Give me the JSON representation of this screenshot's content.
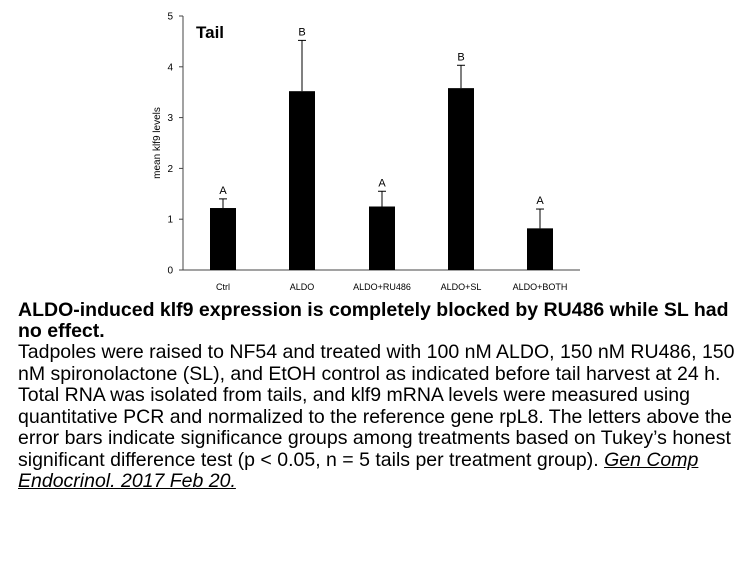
{
  "chart_data": {
    "type": "bar",
    "title": "Tail",
    "xlabel": "",
    "ylabel": "mean klf9 levels",
    "ylim": [
      0,
      5
    ],
    "yticks": [
      "0",
      "1",
      "2",
      "3",
      "4",
      "5"
    ],
    "categories": [
      "Ctrl",
      "ALDO",
      "ALDO+RU486",
      "ALDO+SL",
      "ALDO+BOTH"
    ],
    "values": [
      1.22,
      3.52,
      1.25,
      3.58,
      0.82
    ],
    "errors": [
      0.18,
      1.0,
      0.3,
      0.45,
      0.38
    ],
    "group_labels": [
      "A",
      "B",
      "A",
      "B",
      "A"
    ],
    "bar_color": "#000000",
    "grid": false,
    "legend": "none"
  },
  "caption": {
    "title": "ALDO-induced klf9 expression is completely blocked by RU486 while SL had no effect.",
    "body": "Tadpoles were raised to NF54 and treated with 100 nM ALDO, 150 nM RU486, 150 nM spironolactone (SL), and EtOH control as indicated before tail harvest at 24 h. Total RNA was isolated from tails, and klf9 mRNA levels were measured using quantitative PCR and normalized to the reference gene rpL8. The letters above the error bars indicate significance groups among treatments based on Tukey’s honest significant difference test (p < 0.05, n = 5 tails per treatment group).",
    "citation": "Gen Comp Endocrinol. 2017 Feb 20."
  }
}
